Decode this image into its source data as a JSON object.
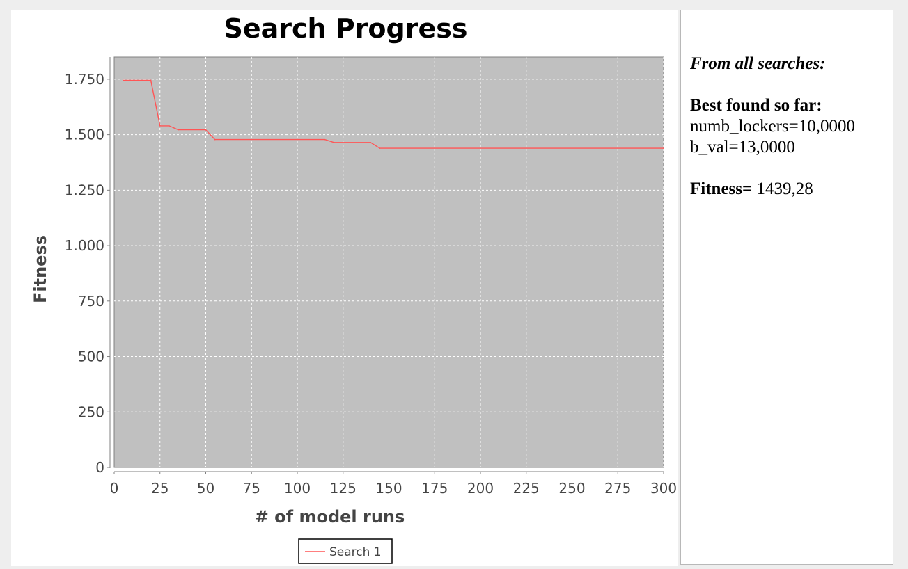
{
  "info_panel": {
    "heading": "From all searches:",
    "best_label": "Best found so far:",
    "params": [
      "numb_lockers=10,0000",
      "b_val=13,0000"
    ],
    "fitness_label": "Fitness=",
    "fitness_value": " 1439,28"
  },
  "chart_data": {
    "type": "line",
    "title": "Search Progress",
    "xlabel": "# of model runs",
    "ylabel": "Fitness",
    "xlim": [
      0,
      300
    ],
    "ylim": [
      0,
      1850
    ],
    "x_ticks": [
      0,
      25,
      50,
      75,
      100,
      125,
      150,
      175,
      200,
      225,
      250,
      275,
      300
    ],
    "x_tick_labels": [
      "0",
      "25",
      "50",
      "75",
      "100",
      "125",
      "150",
      "175",
      "200",
      "225",
      "250",
      "275",
      "300"
    ],
    "y_ticks": [
      0,
      250,
      500,
      750,
      1000,
      1250,
      1500,
      1750
    ],
    "y_tick_labels": [
      "0",
      "250",
      "500",
      "750",
      "1.000",
      "1.250",
      "1.500",
      "1.750"
    ],
    "grid": true,
    "legend_position": "bottom",
    "plot_background": "#c0c0c0",
    "series": [
      {
        "name": "Search 1",
        "color": "#ff5555",
        "x": [
          5,
          20,
          25,
          30,
          35,
          50,
          55,
          115,
          120,
          140,
          145,
          300
        ],
        "y": [
          1745,
          1745,
          1540,
          1540,
          1522,
          1522,
          1478,
          1478,
          1465,
          1465,
          1439,
          1439
        ]
      }
    ]
  }
}
